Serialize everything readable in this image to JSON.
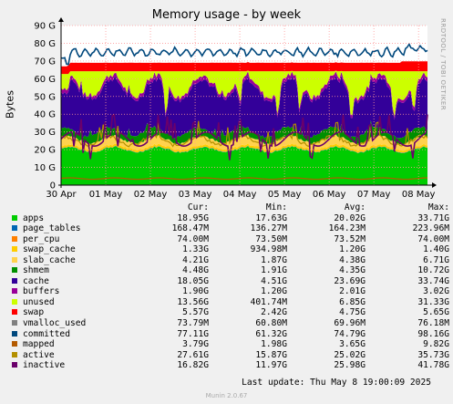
{
  "chart_data": {
    "type": "area",
    "title": "Memory usage - by week",
    "ylabel": "Bytes",
    "watermark": "RRDTOOL / TOBI OETIKER",
    "yticks": [
      "0",
      "10 G",
      "20 G",
      "30 G",
      "40 G",
      "50 G",
      "60 G",
      "70 G",
      "80 G",
      "90 G"
    ],
    "ytick_values": [
      0,
      10,
      20,
      30,
      40,
      50,
      60,
      70,
      80,
      90
    ],
    "ylim": [
      0,
      90
    ],
    "xticks": [
      "30 Apr",
      "01 May",
      "02 May",
      "03 May",
      "04 May",
      "05 May",
      "06 May",
      "07 May",
      "08 May"
    ],
    "xtick_days": [
      0,
      1,
      2,
      3,
      4,
      5,
      6,
      7,
      8
    ],
    "xlim_days": [
      0,
      8.2
    ],
    "grid": true,
    "legend_headers": [
      "Cur:",
      "Min:",
      "Avg:",
      "Max:"
    ],
    "series": [
      {
        "name": "apps",
        "color": "#00cc00",
        "cur": "18.95G",
        "min": "17.63G",
        "avg": "20.02G",
        "max": "33.71G",
        "avg_g": 20.02
      },
      {
        "name": "page_tables",
        "color": "#0066b3",
        "cur": "168.47M",
        "min": "136.27M",
        "avg": "164.23M",
        "max": "223.96M",
        "avg_g": 0.16
      },
      {
        "name": "per_cpu",
        "color": "#ff8000",
        "cur": "74.00M",
        "min": "73.50M",
        "avg": "73.52M",
        "max": "74.00M",
        "avg_g": 0.07
      },
      {
        "name": "swap_cache",
        "color": "#ffcc00",
        "cur": "1.33G",
        "min": "934.98M",
        "avg": "1.20G",
        "max": "1.40G",
        "avg_g": 1.2
      },
      {
        "name": "slab_cache",
        "color": "#ffd24d",
        "cur": "4.21G",
        "min": "1.87G",
        "avg": "4.38G",
        "max": "6.71G",
        "avg_g": 4.38
      },
      {
        "name": "shmem",
        "color": "#008f00",
        "cur": "4.48G",
        "min": "1.91G",
        "avg": "4.35G",
        "max": "10.72G",
        "avg_g": 4.35
      },
      {
        "name": "cache",
        "color": "#330099",
        "cur": "18.05G",
        "min": "4.51G",
        "avg": "23.69G",
        "max": "33.74G",
        "avg_g": 23.69
      },
      {
        "name": "buffers",
        "color": "#990099",
        "cur": "1.90G",
        "min": "1.20G",
        "avg": "2.01G",
        "max": "3.02G",
        "avg_g": 2.01
      },
      {
        "name": "unused",
        "color": "#ccff00",
        "cur": "13.56G",
        "min": "401.74M",
        "avg": "6.85G",
        "max": "31.33G",
        "avg_g": 6.85
      },
      {
        "name": "swap",
        "color": "#ff0000",
        "cur": "5.57G",
        "min": "2.42G",
        "avg": "4.75G",
        "max": "5.65G",
        "avg_g": 4.75
      },
      {
        "name": "vmalloc_used",
        "color": "#808080",
        "cur": "73.79M",
        "min": "60.80M",
        "avg": "69.96M",
        "max": "76.18M",
        "line": true
      },
      {
        "name": "committed",
        "color": "#00487d",
        "cur": "77.11G",
        "min": "61.32G",
        "avg": "74.79G",
        "max": "98.16G",
        "line": true,
        "avg_g": 74.79
      },
      {
        "name": "mapped",
        "color": "#b35a00",
        "cur": "3.79G",
        "min": "1.98G",
        "avg": "3.65G",
        "max": "9.82G",
        "line": true,
        "avg_g": 3.65
      },
      {
        "name": "active",
        "color": "#b38f00",
        "cur": "27.61G",
        "min": "15.87G",
        "avg": "25.02G",
        "max": "35.73G",
        "line": true,
        "avg_g": 25.02
      },
      {
        "name": "inactive",
        "color": "#6b006b",
        "cur": "16.82G",
        "min": "11.97G",
        "avg": "25.98G",
        "max": "41.78G",
        "line": true,
        "avg_g": 25.98
      }
    ]
  },
  "footer": {
    "last_update": "Last update: Thu May  8 19:00:09 2025",
    "version": "Munin 2.0.67"
  }
}
